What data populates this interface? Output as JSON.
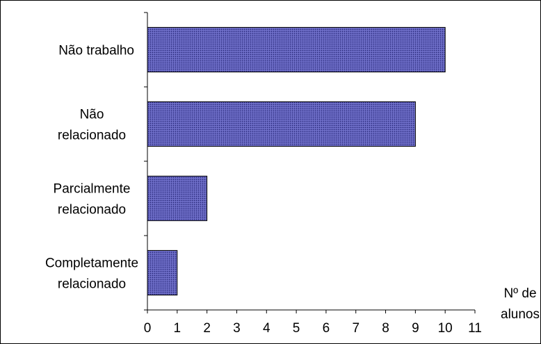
{
  "chart_data": {
    "type": "bar",
    "orientation": "horizontal",
    "categories": [
      [
        "Não trabalho"
      ],
      [
        "Não",
        "relacionado"
      ],
      [
        "Parcialmente",
        "relacionado"
      ],
      [
        "Completamente",
        "relacionado"
      ]
    ],
    "values": [
      10,
      9,
      2,
      1
    ],
    "xlim": [
      0,
      11
    ],
    "x_ticks": [
      "0",
      "1",
      "2",
      "3",
      "4",
      "5",
      "6",
      "7",
      "8",
      "9",
      "10",
      "11"
    ],
    "xlabel": [
      "Nº de",
      "alunos"
    ],
    "ylabel": "",
    "title": "",
    "grid": false,
    "legend": "none",
    "bar_color": "#5b5bb8",
    "bar_pattern": "dotted",
    "border_color": "#000000"
  }
}
